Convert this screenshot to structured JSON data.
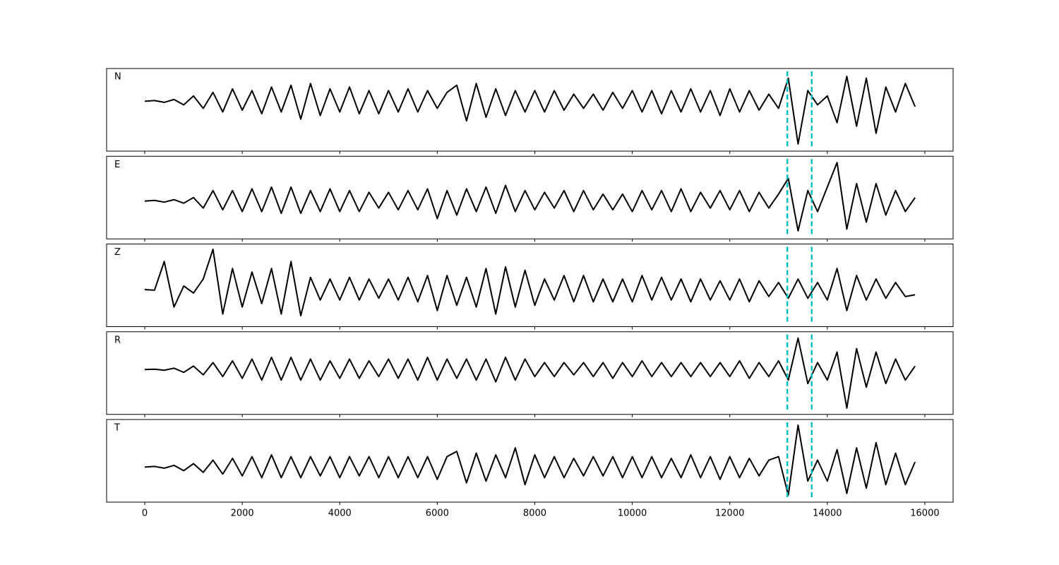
{
  "chart_data": {
    "type": "line",
    "x": [
      0,
      200,
      400,
      600,
      800,
      1000,
      1200,
      1400,
      1600,
      1800,
      2000,
      2200,
      2400,
      2600,
      2800,
      3000,
      3200,
      3400,
      3600,
      3800,
      4000,
      4200,
      4400,
      4600,
      4800,
      5000,
      5200,
      5400,
      5600,
      5800,
      6000,
      6200,
      6400,
      6600,
      6800,
      7000,
      7200,
      7400,
      7600,
      7800,
      8000,
      8200,
      8400,
      8600,
      8800,
      9000,
      9200,
      9400,
      9600,
      9800,
      10000,
      10200,
      10400,
      10600,
      10800,
      11000,
      11200,
      11400,
      11600,
      11800,
      12000,
      12200,
      12400,
      12600,
      12800,
      13000,
      13200,
      13400,
      13600,
      13800,
      14000,
      14200,
      14400,
      14600,
      14800,
      15000,
      15200,
      15400,
      15600,
      15800
    ],
    "xlim": [
      -782,
      16580
    ],
    "xticks": [
      0,
      2000,
      4000,
      6000,
      8000,
      10000,
      12000,
      14000,
      16000
    ],
    "vlines": {
      "x": [
        13180,
        13680
      ],
      "color": "#00bfbf"
    },
    "series": [
      {
        "name": "N",
        "color": "#000000",
        "ylim": [
          -1.4,
          0.92
        ],
        "values": [
          0,
          0.02,
          -0.03,
          0.05,
          -0.1,
          0.15,
          -0.2,
          0.25,
          -0.3,
          0.35,
          -0.25,
          0.3,
          -0.35,
          0.4,
          -0.3,
          0.45,
          -0.5,
          0.5,
          -0.4,
          0.35,
          -0.3,
          0.4,
          -0.35,
          0.3,
          -0.35,
          0.3,
          -0.3,
          0.35,
          -0.3,
          0.3,
          -0.2,
          0.25,
          0.45,
          -0.55,
          0.5,
          -0.45,
          0.35,
          -0.4,
          0.3,
          -0.3,
          0.3,
          -0.3,
          0.3,
          -0.25,
          0.2,
          -0.2,
          0.2,
          -0.25,
          0.25,
          -0.2,
          0.3,
          -0.3,
          0.3,
          -0.35,
          0.3,
          -0.3,
          0.35,
          -0.3,
          0.3,
          -0.4,
          0.35,
          -0.3,
          0.3,
          -0.25,
          0.2,
          -0.2,
          0.65,
          -1.2,
          0.3,
          -0.1,
          0.15,
          -0.6,
          0.7,
          -0.7,
          0.65,
          -0.9,
          0.4,
          -0.3,
          0.5,
          -0.15
        ]
      },
      {
        "name": "E",
        "color": "#000000",
        "ylim": [
          -1.08,
          1.28
        ],
        "values": [
          0,
          0.02,
          -0.03,
          0.04,
          -0.06,
          0.1,
          -0.2,
          0.3,
          -0.25,
          0.3,
          -0.3,
          0.35,
          -0.3,
          0.4,
          -0.35,
          0.4,
          -0.35,
          0.3,
          -0.3,
          0.35,
          -0.3,
          0.3,
          -0.3,
          0.25,
          -0.2,
          0.25,
          -0.25,
          0.3,
          -0.25,
          0.35,
          -0.5,
          0.3,
          -0.4,
          0.35,
          -0.3,
          0.4,
          -0.35,
          0.45,
          -0.3,
          0.3,
          -0.25,
          0.25,
          -0.2,
          0.3,
          -0.3,
          0.3,
          -0.25,
          0.2,
          -0.25,
          0.2,
          -0.3,
          0.3,
          -0.25,
          0.3,
          -0.3,
          0.35,
          -0.3,
          0.25,
          -0.2,
          0.3,
          -0.25,
          0.3,
          -0.3,
          0.25,
          -0.2,
          0.2,
          0.65,
          -0.85,
          0.3,
          -0.3,
          0.4,
          1.1,
          -0.8,
          0.5,
          -0.6,
          0.5,
          -0.4,
          0.3,
          -0.3,
          0.1
        ]
      },
      {
        "name": "Z",
        "color": "#000000",
        "ylim": [
          -1.06,
          1.3
        ],
        "values": [
          0,
          -0.02,
          0.8,
          -0.5,
          0.1,
          -0.1,
          0.3,
          1.15,
          -0.7,
          0.6,
          -0.5,
          0.5,
          -0.4,
          0.6,
          -0.7,
          0.8,
          -0.75,
          0.35,
          -0.3,
          0.3,
          -0.3,
          0.35,
          -0.3,
          0.3,
          -0.25,
          0.3,
          -0.3,
          0.35,
          -0.35,
          0.4,
          -0.6,
          0.4,
          -0.45,
          0.35,
          -0.5,
          0.6,
          -0.7,
          0.65,
          -0.5,
          0.55,
          -0.45,
          0.3,
          -0.3,
          0.4,
          -0.35,
          0.4,
          -0.35,
          0.3,
          -0.35,
          0.3,
          -0.35,
          0.4,
          -0.3,
          0.35,
          -0.3,
          0.3,
          -0.35,
          0.3,
          -0.3,
          0.25,
          -0.3,
          0.3,
          -0.35,
          0.25,
          -0.2,
          0.2,
          -0.25,
          0.3,
          -0.25,
          0.2,
          -0.3,
          0.6,
          -0.6,
          0.4,
          -0.3,
          0.3,
          -0.25,
          0.2,
          -0.2,
          -0.15
        ]
      },
      {
        "name": "R",
        "color": "#000000",
        "ylim": [
          -1.28,
          1.08
        ],
        "values": [
          0,
          0.01,
          -0.02,
          0.04,
          -0.08,
          0.1,
          -0.15,
          0.2,
          -0.2,
          0.25,
          -0.25,
          0.3,
          -0.3,
          0.35,
          -0.3,
          0.35,
          -0.3,
          0.3,
          -0.3,
          0.25,
          -0.25,
          0.3,
          -0.25,
          0.25,
          -0.2,
          0.3,
          -0.25,
          0.3,
          -0.3,
          0.35,
          -0.3,
          0.3,
          -0.25,
          0.3,
          -0.3,
          0.3,
          -0.35,
          0.35,
          -0.3,
          0.3,
          -0.2,
          0.2,
          -0.2,
          0.2,
          -0.15,
          0.2,
          -0.2,
          0.2,
          -0.25,
          0.2,
          -0.2,
          0.25,
          -0.2,
          0.2,
          -0.2,
          0.2,
          -0.2,
          0.2,
          -0.2,
          0.2,
          -0.2,
          0.25,
          -0.25,
          0.2,
          -0.2,
          0.25,
          -0.3,
          0.9,
          -0.4,
          0.2,
          -0.3,
          0.5,
          -1.1,
          0.6,
          -0.5,
          0.5,
          -0.4,
          0.3,
          -0.3,
          0.1
        ]
      },
      {
        "name": "T",
        "color": "#000000",
        "ylim": [
          -1.0,
          1.36
        ],
        "values": [
          0,
          0.02,
          -0.03,
          0.05,
          -0.1,
          0.1,
          -0.15,
          0.2,
          -0.2,
          0.25,
          -0.25,
          0.3,
          -0.3,
          0.35,
          -0.3,
          0.3,
          -0.3,
          0.3,
          -0.25,
          0.3,
          -0.3,
          0.3,
          -0.25,
          0.3,
          -0.3,
          0.3,
          -0.3,
          0.3,
          -0.3,
          0.3,
          -0.35,
          0.3,
          0.45,
          -0.45,
          0.4,
          -0.4,
          0.35,
          -0.3,
          0.55,
          -0.5,
          0.35,
          -0.3,
          0.3,
          -0.3,
          0.25,
          -0.25,
          0.3,
          -0.25,
          0.3,
          -0.3,
          0.3,
          -0.3,
          0.3,
          -0.3,
          0.25,
          -0.3,
          0.35,
          -0.3,
          0.3,
          -0.35,
          0.3,
          -0.3,
          0.25,
          -0.25,
          0.2,
          0.3,
          -0.8,
          1.2,
          -0.4,
          0.2,
          -0.4,
          0.5,
          -0.75,
          0.55,
          -0.6,
          0.7,
          -0.5,
          0.4,
          -0.5,
          0.15
        ]
      }
    ]
  }
}
